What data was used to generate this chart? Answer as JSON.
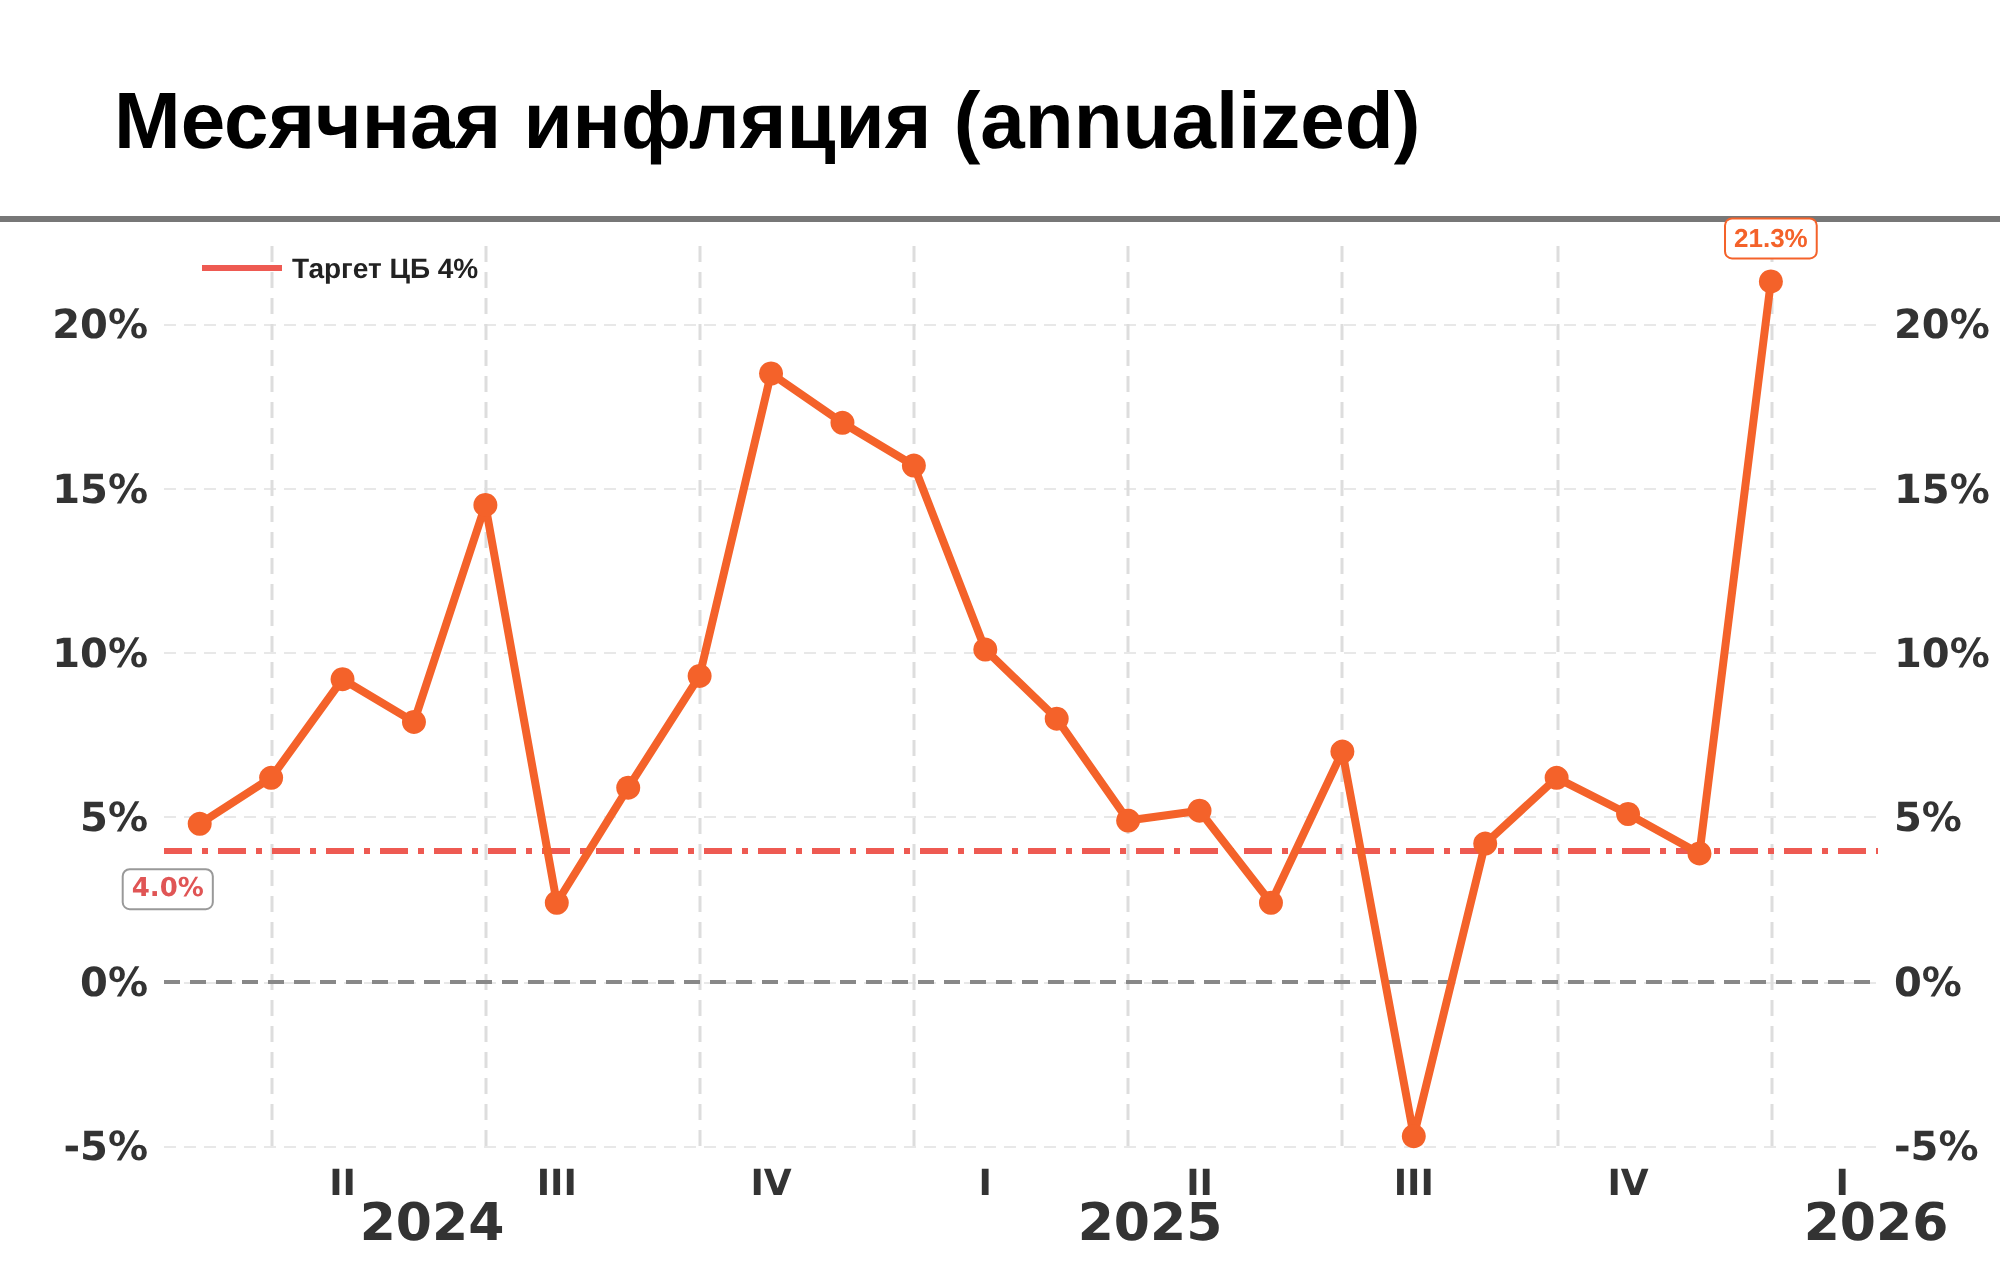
{
  "chart_data": {
    "type": "line",
    "title": "Месячная инфляция (annualized)",
    "categories": [
      null,
      null,
      "II",
      null,
      null,
      "III",
      null,
      null,
      "IV",
      null,
      null,
      "I",
      null,
      null,
      "II",
      null,
      null,
      "III",
      null,
      null,
      "IV",
      null,
      null,
      "I"
    ],
    "series": [
      {
        "color": "#f4622a",
        "values": [
          4.8,
          6.2,
          9.2,
          7.9,
          14.5,
          2.4,
          5.9,
          9.3,
          18.5,
          17.0,
          15.7,
          10.1,
          8.0,
          4.9,
          5.2,
          2.4,
          7.0,
          -4.7,
          4.2,
          6.2,
          5.1,
          3.9,
          21.3,
          null
        ],
        "value_labels": [
          null,
          null,
          null,
          null,
          null,
          null,
          null,
          null,
          null,
          null,
          null,
          null,
          null,
          null,
          null,
          null,
          null,
          null,
          null,
          null,
          null,
          null,
          "21.3%",
          null
        ]
      }
    ],
    "marker": "circle",
    "line_style": "solid",
    "grid": true,
    "legend": "top left",
    "ylim": [
      -5,
      22.5
    ],
    "yticks": [
      {
        "value": -5,
        "label": "-5%"
      },
      {
        "value": 0,
        "label": "0%"
      },
      {
        "value": 5,
        "label": "5%"
      },
      {
        "value": 10,
        "label": "10%"
      },
      {
        "value": 15,
        "label": "15%"
      },
      {
        "value": 20,
        "label": "20%"
      }
    ],
    "y2lim": [
      -5,
      22.5
    ],
    "y2ticks": [
      {
        "value": -5,
        "label": "-5%"
      },
      {
        "value": 0,
        "label": "0%"
      },
      {
        "value": 5,
        "label": "5%"
      },
      {
        "value": 10,
        "label": "10%"
      },
      {
        "value": 15,
        "label": "15%"
      },
      {
        "value": 20,
        "label": "20%"
      }
    ],
    "ref_lines": [
      {
        "axis": "y",
        "value": 4,
        "label": "Таргет ЦБ 4%",
        "color": "#ee5a52",
        "line_style": "dashed"
      },
      {
        "axis": "y",
        "value": 0,
        "color": "#888888",
        "line_style": "dashed"
      }
    ],
    "annotations": [
      {
        "text": "4.0%",
        "y": 4
      },
      "2024",
      "2025",
      "2026"
    ]
  }
}
